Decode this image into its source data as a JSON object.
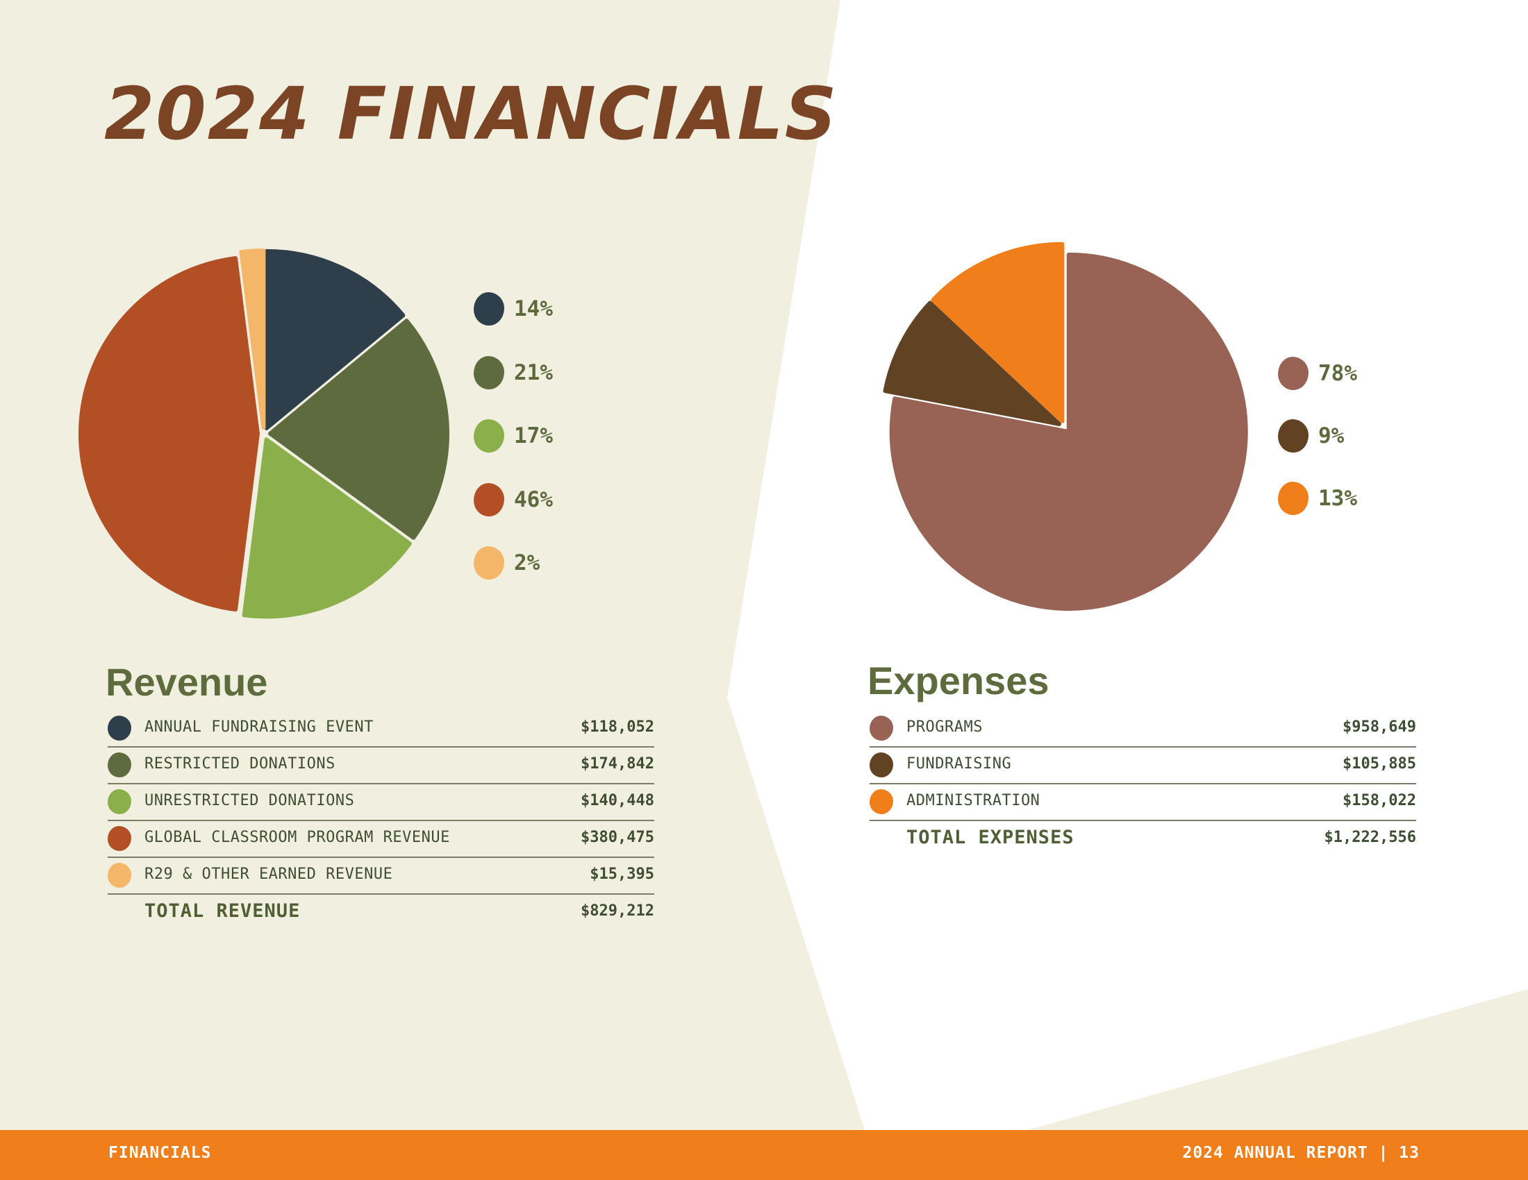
{
  "page": {
    "title": "2024 FINANCIALS",
    "colors": {
      "cream_panel": "#f1f0e0",
      "accent_orange": "#f07e1a",
      "title_brown": "#7a4425",
      "olive_text": "#5e6b3c"
    }
  },
  "revenue": {
    "heading": "Revenue",
    "rows": [
      {
        "label": "ANNUAL FUNDRAISING EVENT",
        "value": "$118,052",
        "color": "#2f3e4b"
      },
      {
        "label": "RESTRICTED DONATIONS",
        "value": "$174,842",
        "color": "#5e6b3f"
      },
      {
        "label": "UNRESTRICTED DONATIONS",
        "value": "$140,448",
        "color": "#8bb04b"
      },
      {
        "label": "GLOBAL CLASSROOM PROGRAM REVENUE",
        "value": "$380,475",
        "color": "#b24f25"
      },
      {
        "label": "R29 & OTHER EARNED REVENUE",
        "value": "$15,395",
        "color": "#f4b769"
      }
    ],
    "total_label": "TOTAL REVENUE",
    "total_value": "$829,212"
  },
  "expenses": {
    "heading": "Expenses",
    "rows": [
      {
        "label": "PROGRAMS",
        "value": "$958,649",
        "color": "#986355"
      },
      {
        "label": "FUNDRAISING",
        "value": "$105,885",
        "color": "#614223"
      },
      {
        "label": "ADMINISTRATION",
        "value": "$158,022",
        "color": "#f07e1a"
      }
    ],
    "total_label": "TOTAL EXPENSES",
    "total_value": "$1,222,556"
  },
  "chart_data": [
    {
      "type": "pie",
      "categories": [
        "ANNUAL FUNDRAISING EVENT",
        "RESTRICTED DONATIONS",
        "UNRESTRICTED DONATIONS",
        "GLOBAL CLASSROOM PROGRAM REVENUE",
        "R29 & OTHER EARNED REVENUE"
      ],
      "values": [
        14,
        21,
        17,
        46,
        2
      ],
      "labels": [
        "14%",
        "21%",
        "17%",
        "46%",
        "2%"
      ],
      "colors": [
        "#2f3e4b",
        "#5e6b3f",
        "#8bb04b",
        "#b24f25",
        "#f4b769"
      ],
      "legend": "right"
    },
    {
      "type": "pie",
      "categories": [
        "PROGRAMS",
        "FUNDRAISING",
        "ADMINISTRATION"
      ],
      "values": [
        78,
        9,
        13
      ],
      "labels": [
        "78%",
        "9%",
        "13%"
      ],
      "colors": [
        "#986355",
        "#614223",
        "#f07e1a"
      ],
      "legend": "right"
    }
  ],
  "footer": {
    "left": "FINANCIALS",
    "right": "2024 ANNUAL REPORT | 13"
  }
}
